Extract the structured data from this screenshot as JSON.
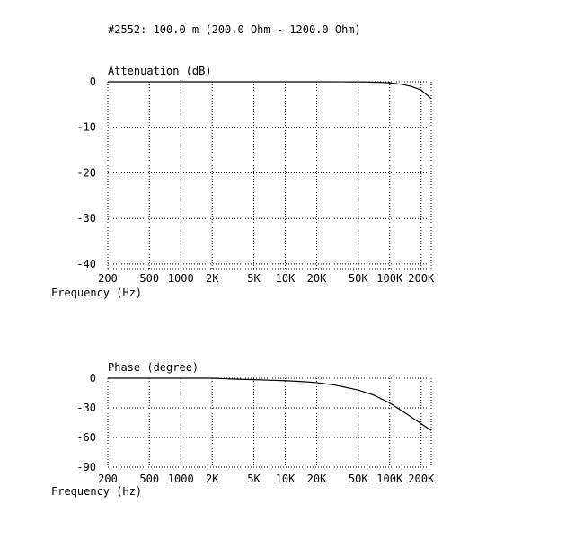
{
  "header": {
    "title": "#2552: 100.0 m (200.0 Ohm - 1200.0 Ohm)"
  },
  "chart_data": [
    {
      "type": "line",
      "title": "Attenuation (dB)",
      "xlabel": "Frequency (Hz)",
      "ylabel": "Attenuation (dB)",
      "x_scale": "log",
      "xlim": [
        200,
        250000
      ],
      "ylim": [
        -41,
        0
      ],
      "grid": true,
      "x_ticks": [
        200,
        500,
        1000,
        2000,
        5000,
        10000,
        20000,
        50000,
        100000,
        200000
      ],
      "x_tick_labels": [
        "200",
        "500",
        "1000",
        "2K",
        "5K",
        "10K",
        "20K",
        "50K",
        "100K",
        "200K"
      ],
      "y_ticks": [
        0,
        -10,
        -20,
        -30,
        -40
      ],
      "y_tick_labels": [
        "0",
        "-10",
        "-20",
        "-30",
        "-40"
      ],
      "series": [
        {
          "name": "",
          "x": [
            200,
            1000,
            5000,
            20000,
            40000,
            60000,
            80000,
            100000,
            130000,
            160000,
            200000,
            250000
          ],
          "y": [
            0,
            0,
            0,
            0,
            -0.02,
            -0.05,
            -0.12,
            -0.25,
            -0.55,
            -1.0,
            -1.8,
            -3.7
          ]
        }
      ]
    },
    {
      "type": "line",
      "title": "Phase (degree)",
      "xlabel": "Frequency (Hz)",
      "ylabel": "Phase (degree)",
      "x_scale": "log",
      "xlim": [
        200,
        250000
      ],
      "ylim": [
        -90,
        0
      ],
      "grid": true,
      "x_ticks": [
        200,
        500,
        1000,
        2000,
        5000,
        10000,
        20000,
        50000,
        100000,
        200000
      ],
      "x_tick_labels": [
        "200",
        "500",
        "1000",
        "2K",
        "5K",
        "10K",
        "20K",
        "50K",
        "100K",
        "200K"
      ],
      "y_ticks": [
        0,
        -30,
        -60,
        -90
      ],
      "y_tick_labels": [
        "0",
        "-30",
        "-60",
        "-90"
      ],
      "series": [
        {
          "name": "",
          "x": [
            200,
            500,
            1000,
            2000,
            3000,
            5000,
            7000,
            10000,
            15000,
            20000,
            30000,
            50000,
            70000,
            100000,
            150000,
            200000,
            250000
          ],
          "y": [
            0,
            0,
            0,
            0,
            -0.8,
            -1.5,
            -2.0,
            -2.5,
            -3.5,
            -4.5,
            -7.0,
            -12.0,
            -17.0,
            -25.0,
            -37.0,
            -46.0,
            -53.0
          ]
        }
      ]
    }
  ]
}
